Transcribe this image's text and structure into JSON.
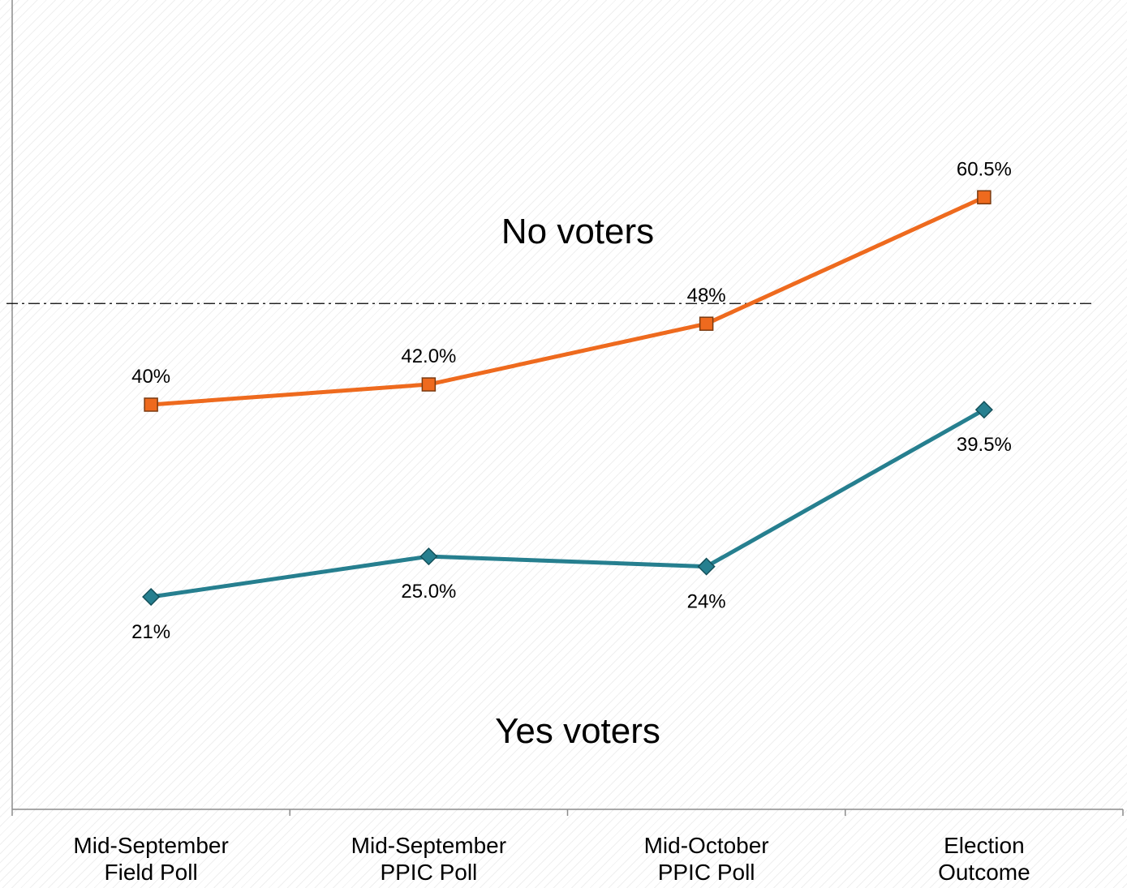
{
  "chart_data": {
    "type": "line",
    "title": "",
    "xlabel": "",
    "ylabel": "",
    "categories": [
      [
        "Mid-September",
        "Field Poll"
      ],
      [
        "Mid-September",
        "PPIC Poll"
      ],
      [
        "Mid-October",
        "PPIC Poll"
      ],
      [
        "Election",
        "Outcome"
      ]
    ],
    "series": [
      {
        "name": "No voters",
        "values": [
          40,
          42.0,
          48,
          60.5
        ],
        "labels": [
          "40%",
          "42.0%",
          "48%",
          "60.5%"
        ],
        "color": "#ee6a1e",
        "marker": "square",
        "label_position": "above"
      },
      {
        "name": "Yes voters",
        "values": [
          21,
          25.0,
          24,
          39.5
        ],
        "labels": [
          "21%",
          "25.0%",
          "24%",
          "39.5%"
        ],
        "color": "#267f8f",
        "marker": "diamond",
        "label_position": "below"
      }
    ],
    "reference_line": {
      "value": 50,
      "style": "dash-dot"
    },
    "ylim": [
      0,
      80
    ],
    "grid": false,
    "legend": "none"
  }
}
